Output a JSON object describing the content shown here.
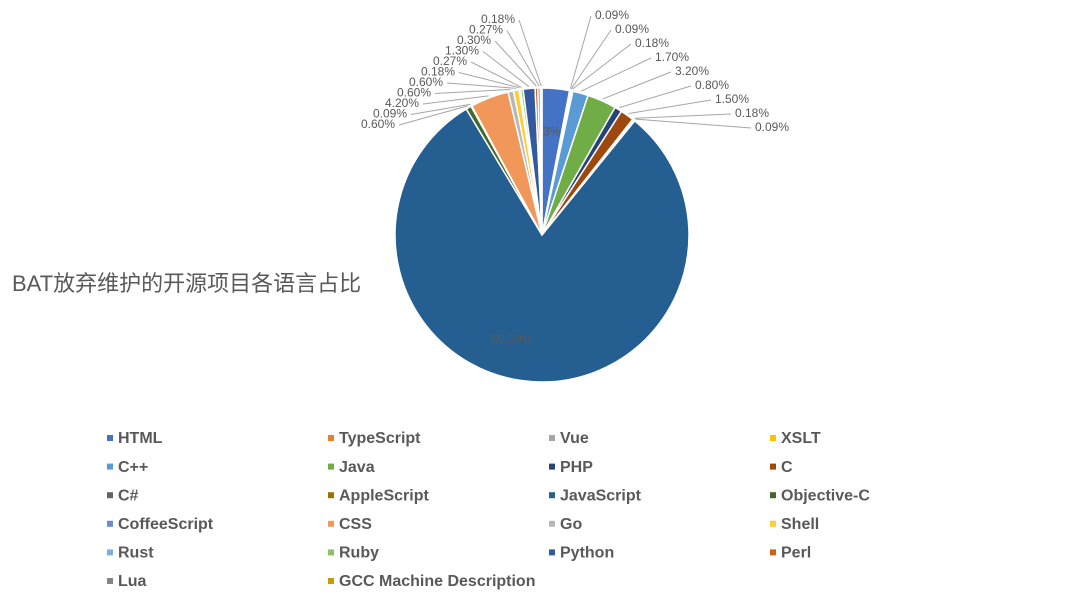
{
  "chart_data": {
    "type": "pie",
    "title": "BAT放弃维护的开源项目各语言占比",
    "categories": [
      "HTML",
      "TypeScript",
      "Vue",
      "XSLT",
      "C++",
      "Java",
      "PHP",
      "C",
      "C#",
      "AppleScript",
      "JavaScript",
      "Objective-C",
      "CoffeeScript",
      "CSS",
      "Go",
      "Shell",
      "Rust",
      "Ruby",
      "Python",
      "Perl",
      "Lua",
      "GCC Machine Description"
    ],
    "values": [
      3,
      0.09,
      0.09,
      0.18,
      1.7,
      3.2,
      0.8,
      1.5,
      0.18,
      0.09,
      80.3,
      0.6,
      0.09,
      4.2,
      0.6,
      0.6,
      0.18,
      0.27,
      1.3,
      0.3,
      0.27,
      0.18
    ],
    "value_labels": [
      "3%",
      "0.09%",
      "0.09%",
      "0.18%",
      "1.70%",
      "3.20%",
      "0.80%",
      "1.50%",
      "0.18%",
      "0.09%",
      "80.30%",
      "0.60%",
      "0.09%",
      "4.20%",
      "0.60%",
      "0.60%",
      "0.18%",
      "0.27%",
      "1.30%",
      "0.30%",
      "0.27%",
      "0.18%"
    ],
    "colors": [
      "#4472c4",
      "#ed7d31",
      "#a5a5a5",
      "#ffc000",
      "#5b9bd5",
      "#70ad47",
      "#264478",
      "#9e480e",
      "#636363",
      "#997300",
      "#255e91",
      "#43682b",
      "#698ed0",
      "#f1975a",
      "#b7b7b7",
      "#ffcd33",
      "#7cafdd",
      "#8cc168",
      "#335aa1",
      "#d26012",
      "#848484",
      "#cc9a00"
    ]
  }
}
